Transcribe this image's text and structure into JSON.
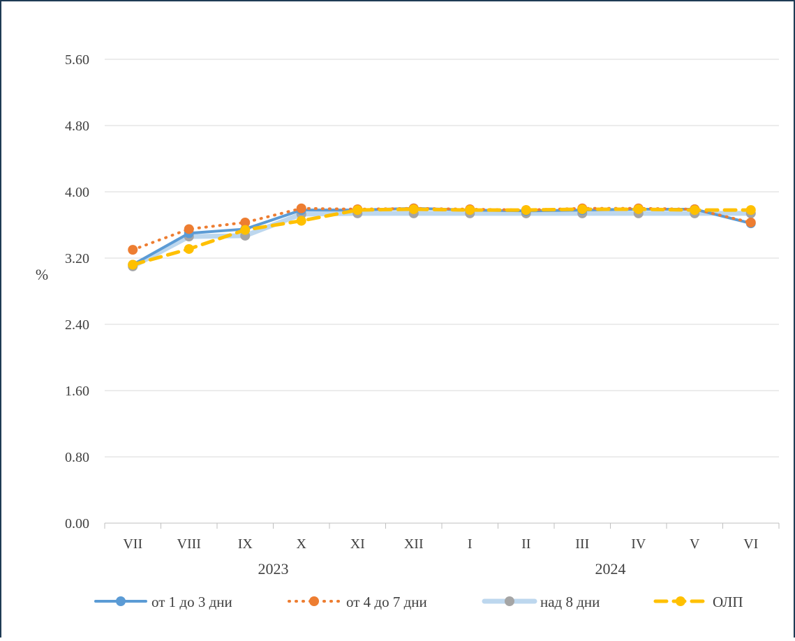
{
  "chart_data": {
    "type": "line",
    "title": "",
    "ylabel": "%",
    "xlabel": "",
    "ylim": [
      0,
      5.6
    ],
    "yticks": [
      "0.00",
      "0.80",
      "1.60",
      "2.40",
      "3.20",
      "4.00",
      "4.80",
      "5.60"
    ],
    "ytick_values": [
      0,
      0.8,
      1.6,
      2.4,
      3.2,
      4.0,
      4.8,
      5.6
    ],
    "categories": [
      "VII",
      "VIII",
      "IX",
      "X",
      "XI",
      "XII",
      "I",
      "II",
      "III",
      "IV",
      "V",
      "VI"
    ],
    "year_groups": [
      {
        "label": "2023",
        "categories": [
          "VII",
          "VIII",
          "IX",
          "X",
          "XI",
          "XII"
        ]
      },
      {
        "label": "2024",
        "categories": [
          "I",
          "II",
          "III",
          "IV",
          "V",
          "VI"
        ]
      }
    ],
    "grid": true,
    "legend_position": "bottom",
    "series": [
      {
        "name": "от 1 до 3 дни",
        "color": "#5b9bd5",
        "style": "solid",
        "values": [
          3.12,
          3.5,
          3.55,
          3.78,
          3.78,
          3.8,
          3.78,
          3.77,
          3.78,
          3.79,
          3.79,
          3.62
        ]
      },
      {
        "name": "от 4 до 7 дни",
        "color": "#ed7d31",
        "style": "dotted",
        "values": [
          3.3,
          3.55,
          3.63,
          3.8,
          3.79,
          3.8,
          3.79,
          3.78,
          3.8,
          3.8,
          3.79,
          3.63
        ]
      },
      {
        "name": "над 8 дни",
        "color": "#bdd7ee",
        "marker_color": "#a5a5a5",
        "style": "solid-light",
        "values": [
          3.1,
          3.46,
          3.47,
          3.73,
          3.74,
          3.74,
          3.74,
          3.74,
          3.74,
          3.74,
          3.74,
          3.74
        ]
      },
      {
        "name": "ОЛП",
        "color": "#ffc000",
        "style": "dashed",
        "values": [
          3.12,
          3.31,
          3.54,
          3.65,
          3.78,
          3.79,
          3.78,
          3.78,
          3.79,
          3.79,
          3.78,
          3.78
        ]
      }
    ]
  }
}
